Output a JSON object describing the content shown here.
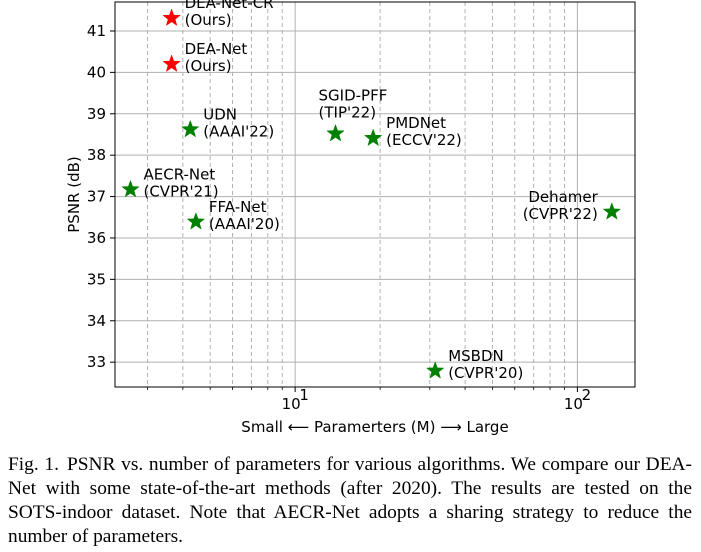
{
  "chart_data": {
    "type": "scatter",
    "xscale": "log",
    "xlim": [
      2.3,
      160
    ],
    "ylim": [
      32.4,
      41.7
    ],
    "xlabel": "Small ⟵  Paramerters (M)  ⟶ Large",
    "ylabel": "PSNR (dB)",
    "yticks": [
      33,
      34,
      35,
      36,
      37,
      38,
      39,
      40,
      41
    ],
    "xticks_major": [
      {
        "value": 10,
        "base": "10",
        "exp": "1"
      },
      {
        "value": 100,
        "base": "10",
        "exp": "2"
      }
    ],
    "xticks_minor": [
      3,
      4,
      5,
      6,
      7,
      8,
      9,
      20,
      30,
      40,
      50,
      60,
      70,
      80,
      90
    ],
    "grid": true,
    "points": [
      {
        "name": "DEA-Net-CR",
        "venue": "(Ours)",
        "x": 3.65,
        "y": 41.31,
        "color": "#ff0000",
        "label_pos": "right"
      },
      {
        "name": "DEA-Net",
        "venue": "(Ours)",
        "x": 3.65,
        "y": 40.2,
        "color": "#ff0000",
        "label_pos": "right"
      },
      {
        "name": "UDN",
        "venue": "(AAAI'22)",
        "x": 4.25,
        "y": 38.62,
        "color": "#008000",
        "label_pos": "right"
      },
      {
        "name": "SGID-PFF",
        "venue": "(TIP'22)",
        "x": 13.9,
        "y": 38.52,
        "color": "#008000",
        "label_pos": "above"
      },
      {
        "name": "PMDNet",
        "venue": "(ECCV'22)",
        "x": 18.9,
        "y": 38.41,
        "color": "#008000",
        "label_pos": "right"
      },
      {
        "name": "AECR-Net",
        "venue": "(CVPR'21)",
        "x": 2.61,
        "y": 37.17,
        "color": "#008000",
        "label_pos": "right"
      },
      {
        "name": "FFA-Net",
        "venue": "(AAAI'20)",
        "x": 4.45,
        "y": 36.39,
        "color": "#008000",
        "label_pos": "right"
      },
      {
        "name": "Dehamer",
        "venue": "(CVPR'22)",
        "x": 132.45,
        "y": 36.63,
        "color": "#008000",
        "label_pos": "left"
      },
      {
        "name": "MSBDN",
        "venue": "(CVPR'20)",
        "x": 31.35,
        "y": 32.79,
        "color": "#008000",
        "label_pos": "right"
      }
    ]
  },
  "caption": {
    "label": "Fig. 1.",
    "text": "PSNR vs. number of parameters for various algorithms. We compare our DEA-Net with some state-of-the-art methods (after 2020). The results are tested on the SOTS-indoor dataset. Note that AECR-Net adopts a sharing strategy to reduce the number of parameters."
  }
}
